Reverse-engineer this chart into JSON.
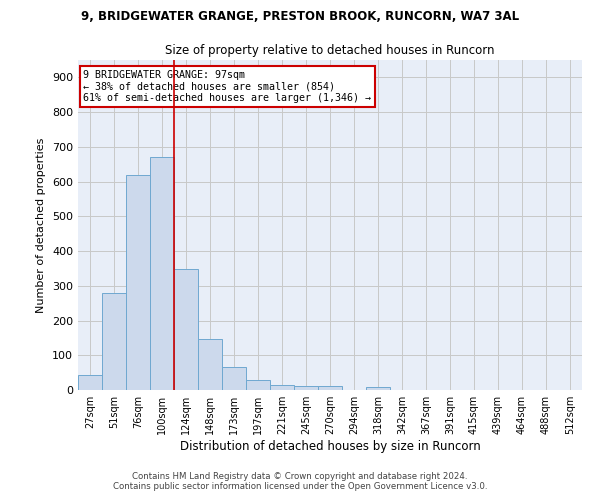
{
  "title1": "9, BRIDGEWATER GRANGE, PRESTON BROOK, RUNCORN, WA7 3AL",
  "title2": "Size of property relative to detached houses in Runcorn",
  "xlabel": "Distribution of detached houses by size in Runcorn",
  "ylabel": "Number of detached properties",
  "footnote1": "Contains HM Land Registry data © Crown copyright and database right 2024.",
  "footnote2": "Contains public sector information licensed under the Open Government Licence v3.0.",
  "bar_color": "#ccd9ec",
  "bar_edge_color": "#6fa8d0",
  "grid_color": "#c8c8c8",
  "bg_color": "#e8eef8",
  "annotation_box_color": "#cc0000",
  "vline_color": "#cc0000",
  "categories": [
    "27sqm",
    "51sqm",
    "76sqm",
    "100sqm",
    "124sqm",
    "148sqm",
    "173sqm",
    "197sqm",
    "221sqm",
    "245sqm",
    "270sqm",
    "294sqm",
    "318sqm",
    "342sqm",
    "367sqm",
    "391sqm",
    "415sqm",
    "439sqm",
    "464sqm",
    "488sqm",
    "512sqm"
  ],
  "values": [
    42,
    280,
    620,
    670,
    348,
    148,
    65,
    28,
    15,
    12,
    12,
    0,
    10,
    0,
    0,
    0,
    0,
    0,
    0,
    0,
    0
  ],
  "property_label": "9 BRIDGEWATER GRANGE: 97sqm",
  "annotation_line1": "← 38% of detached houses are smaller (854)",
  "annotation_line2": "61% of semi-detached houses are larger (1,346) →",
  "vline_x": 3.5,
  "ylim": [
    0,
    950
  ],
  "yticks": [
    0,
    100,
    200,
    300,
    400,
    500,
    600,
    700,
    800,
    900
  ]
}
